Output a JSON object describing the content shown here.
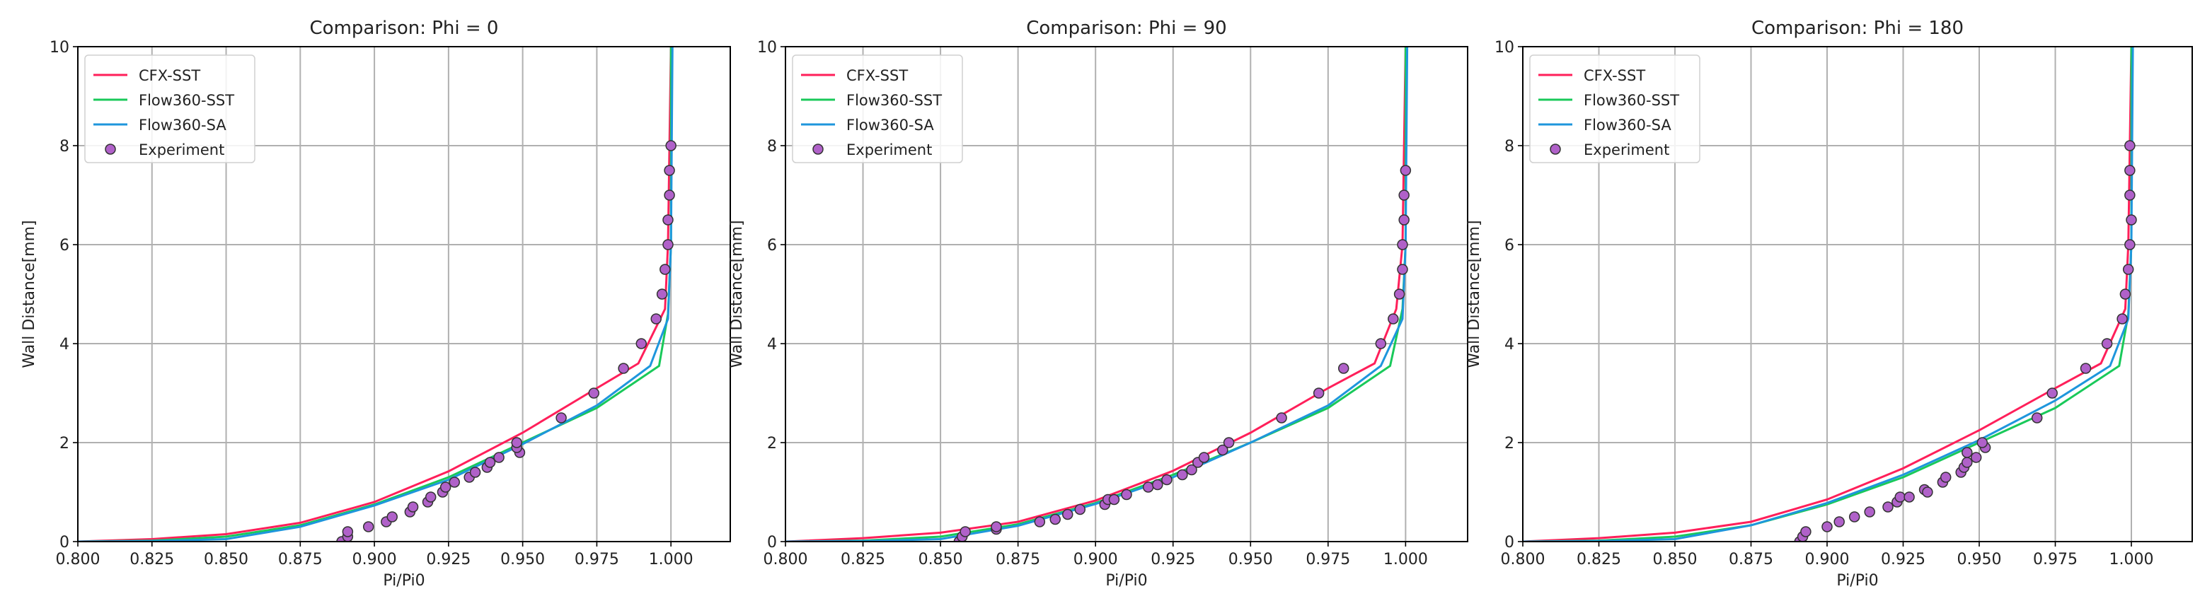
{
  "colors": {
    "CFX-SST": "#ff1f5a",
    "Flow360-SST": "#19c95a",
    "Flow360-SA": "#1e96dc",
    "Experiment": "#b061c9"
  },
  "chart_data": [
    {
      "type": "line",
      "title": "Comparison: Phi = 0",
      "xlabel": "Pi/Pi0",
      "ylabel": "Wall Distance[mm]",
      "xlim": [
        0.8,
        1.02
      ],
      "ylim": [
        0,
        10
      ],
      "xticks": [
        "0.800",
        "0.825",
        "0.850",
        "0.875",
        "0.900",
        "0.925",
        "0.950",
        "0.975",
        "1.000"
      ],
      "yticks": [
        "0",
        "2",
        "4",
        "6",
        "8",
        "10"
      ],
      "grid": true,
      "legend_position": "top-left",
      "series": [
        {
          "name": "CFX-SST",
          "kind": "line",
          "x": [
            0.8,
            0.825,
            0.85,
            0.875,
            0.9,
            0.925,
            0.95,
            0.975,
            0.989,
            0.998,
            0.999,
            1.0
          ],
          "y": [
            0,
            0.05,
            0.15,
            0.38,
            0.8,
            1.42,
            2.2,
            3.1,
            3.6,
            4.7,
            6,
            10
          ]
        },
        {
          "name": "Flow360-SST",
          "kind": "line",
          "x": [
            0.8,
            0.825,
            0.85,
            0.875,
            0.9,
            0.925,
            0.95,
            0.975,
            0.996,
            0.999,
            1.0,
            1.0
          ],
          "y": [
            0,
            0.02,
            0.1,
            0.33,
            0.75,
            1.3,
            2.0,
            2.7,
            3.55,
            4.6,
            6,
            10
          ]
        },
        {
          "name": "Flow360-SA",
          "kind": "line",
          "x": [
            0.8,
            0.825,
            0.85,
            0.875,
            0.9,
            0.925,
            0.95,
            0.975,
            0.993,
            0.999,
            1.0,
            1.0005
          ],
          "y": [
            0,
            0.01,
            0.05,
            0.3,
            0.73,
            1.25,
            1.97,
            2.75,
            3.55,
            4.5,
            6,
            10
          ]
        },
        {
          "name": "Experiment",
          "kind": "scatter",
          "x": [
            0.889,
            0.891,
            0.891,
            0.898,
            0.904,
            0.906,
            0.912,
            0.913,
            0.918,
            0.919,
            0.923,
            0.924,
            0.927,
            0.932,
            0.934,
            0.938,
            0.939,
            0.942,
            0.949,
            0.948,
            0.948,
            0.963,
            0.974,
            0.984,
            0.99,
            0.995,
            0.997,
            0.998,
            0.999,
            0.999,
            0.9995,
            0.9995,
            1.0
          ],
          "y": [
            0,
            0.1,
            0.2,
            0.3,
            0.4,
            0.5,
            0.6,
            0.7,
            0.8,
            0.9,
            1.0,
            1.1,
            1.2,
            1.3,
            1.4,
            1.5,
            1.6,
            1.7,
            1.8,
            1.9,
            2.0,
            2.5,
            3.0,
            3.5,
            4.0,
            4.5,
            5.0,
            5.5,
            6.0,
            6.5,
            7.0,
            7.5,
            8.0
          ]
        }
      ]
    },
    {
      "type": "line",
      "title": "Comparison: Phi = 90",
      "xlabel": "Pi/Pi0",
      "ylabel": "Wall Distance[mm]",
      "xlim": [
        0.8,
        1.02
      ],
      "ylim": [
        0,
        10
      ],
      "xticks": [
        "0.800",
        "0.825",
        "0.850",
        "0.875",
        "0.900",
        "0.925",
        "0.950",
        "0.975",
        "1.000"
      ],
      "yticks": [
        "0",
        "2",
        "4",
        "6",
        "8",
        "10"
      ],
      "grid": true,
      "legend_position": "top-left",
      "series": [
        {
          "name": "CFX-SST",
          "kind": "line",
          "x": [
            0.8,
            0.825,
            0.85,
            0.875,
            0.9,
            0.925,
            0.95,
            0.975,
            0.99,
            0.997,
            0.999,
            1.0
          ],
          "y": [
            0,
            0.07,
            0.18,
            0.4,
            0.83,
            1.43,
            2.2,
            3.1,
            3.6,
            4.7,
            6,
            10
          ]
        },
        {
          "name": "Flow360-SST",
          "kind": "line",
          "x": [
            0.8,
            0.825,
            0.85,
            0.875,
            0.9,
            0.925,
            0.95,
            0.975,
            0.995,
            0.999,
            1.0,
            1.0
          ],
          "y": [
            0,
            0.02,
            0.1,
            0.35,
            0.78,
            1.35,
            2.0,
            2.7,
            3.55,
            4.7,
            6,
            10
          ]
        },
        {
          "name": "Flow360-SA",
          "kind": "line",
          "x": [
            0.8,
            0.825,
            0.85,
            0.875,
            0.9,
            0.925,
            0.95,
            0.975,
            0.992,
            0.999,
            1.0,
            1.0005
          ],
          "y": [
            0,
            0.01,
            0.05,
            0.32,
            0.76,
            1.3,
            2.0,
            2.75,
            3.55,
            4.5,
            6,
            10
          ]
        },
        {
          "name": "Experiment",
          "kind": "scatter",
          "x": [
            0.856,
            0.857,
            0.858,
            0.868,
            0.868,
            0.882,
            0.887,
            0.891,
            0.895,
            0.903,
            0.904,
            0.906,
            0.91,
            0.917,
            0.92,
            0.923,
            0.928,
            0.931,
            0.933,
            0.935,
            0.941,
            0.943,
            0.96,
            0.972,
            0.98,
            0.992,
            0.996,
            0.998,
            0.999,
            0.999,
            0.9995,
            0.9995,
            1.0
          ],
          "y": [
            0,
            0.1,
            0.2,
            0.25,
            0.3,
            0.4,
            0.45,
            0.55,
            0.65,
            0.75,
            0.85,
            0.85,
            0.95,
            1.1,
            1.15,
            1.25,
            1.35,
            1.45,
            1.6,
            1.7,
            1.85,
            2.0,
            2.5,
            3.0,
            3.5,
            4.0,
            4.5,
            5.0,
            5.5,
            6.0,
            6.5,
            7.0,
            7.5
          ]
        }
      ]
    },
    {
      "type": "line",
      "title": "Comparison: Phi = 180",
      "xlabel": "Pi/Pi0",
      "ylabel": "Wall Distance[mm]",
      "xlim": [
        0.8,
        1.02
      ],
      "ylim": [
        0,
        10
      ],
      "xticks": [
        "0.800",
        "0.825",
        "0.850",
        "0.875",
        "0.900",
        "0.925",
        "0.950",
        "0.975",
        "1.000"
      ],
      "yticks": [
        "0",
        "2",
        "4",
        "6",
        "8",
        "10"
      ],
      "grid": true,
      "legend_position": "top-left",
      "series": [
        {
          "name": "CFX-SST",
          "kind": "line",
          "x": [
            0.8,
            0.825,
            0.85,
            0.875,
            0.9,
            0.925,
            0.95,
            0.975,
            0.99,
            0.998,
            0.999,
            1.0
          ],
          "y": [
            0,
            0.07,
            0.18,
            0.4,
            0.85,
            1.48,
            2.25,
            3.1,
            3.6,
            4.7,
            6,
            10
          ]
        },
        {
          "name": "Flow360-SST",
          "kind": "line",
          "x": [
            0.8,
            0.825,
            0.85,
            0.875,
            0.9,
            0.925,
            0.95,
            0.975,
            0.996,
            0.999,
            1.0,
            1.0
          ],
          "y": [
            0,
            0.02,
            0.1,
            0.33,
            0.75,
            1.3,
            2.0,
            2.7,
            3.55,
            4.6,
            6,
            10
          ]
        },
        {
          "name": "Flow360-SA",
          "kind": "line",
          "x": [
            0.8,
            0.825,
            0.85,
            0.875,
            0.9,
            0.925,
            0.95,
            0.975,
            0.993,
            0.999,
            1.0,
            1.0005
          ],
          "y": [
            0,
            0.01,
            0.05,
            0.33,
            0.78,
            1.35,
            2.05,
            2.85,
            3.55,
            4.5,
            6,
            10
          ]
        },
        {
          "name": "Experiment",
          "kind": "scatter",
          "x": [
            0.891,
            0.892,
            0.893,
            0.9,
            0.904,
            0.909,
            0.914,
            0.92,
            0.923,
            0.924,
            0.927,
            0.932,
            0.933,
            0.938,
            0.939,
            0.944,
            0.945,
            0.946,
            0.949,
            0.946,
            0.952,
            0.951,
            0.969,
            0.974,
            0.985,
            0.992,
            0.997,
            0.998,
            0.999,
            0.9995,
            1.0,
            0.9995,
            0.9995,
            0.9995
          ],
          "y": [
            0,
            0.1,
            0.2,
            0.3,
            0.4,
            0.5,
            0.6,
            0.7,
            0.8,
            0.9,
            0.9,
            1.05,
            1.0,
            1.2,
            1.3,
            1.4,
            1.5,
            1.6,
            1.7,
            1.8,
            1.9,
            2.0,
            2.5,
            3.0,
            3.5,
            4.0,
            4.5,
            5.0,
            5.5,
            6,
            6.5,
            7,
            7.5,
            8
          ]
        }
      ]
    }
  ]
}
